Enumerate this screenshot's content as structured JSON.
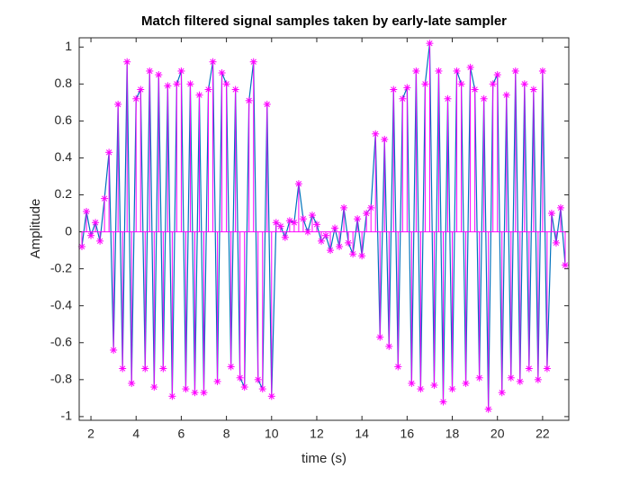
{
  "chart_data": {
    "type": "line",
    "title": "Match filtered signal samples taken by early-late sampler",
    "xlabel": "time (s)",
    "ylabel": "Amplitude",
    "xlim": [
      1.48,
      23.16
    ],
    "ylim": [
      -1.02,
      1.05
    ],
    "xticks": [
      2,
      4,
      6,
      8,
      10,
      12,
      14,
      16,
      18,
      20,
      22
    ],
    "yticks": [
      -1,
      -0.8,
      -0.6,
      -0.4,
      -0.2,
      0,
      0.2,
      0.4,
      0.6,
      0.8,
      1
    ],
    "grid": false,
    "x": [
      1.6,
      1.8,
      2.0,
      2.2,
      2.4,
      2.6,
      2.8,
      3.0,
      3.2,
      3.4,
      3.6,
      3.8,
      4.0,
      4.2,
      4.4,
      4.6,
      4.8,
      5.0,
      5.2,
      5.4,
      5.6,
      5.8,
      6.0,
      6.2,
      6.4,
      6.6,
      6.8,
      7.0,
      7.2,
      7.4,
      7.6,
      7.8,
      8.0,
      8.2,
      8.4,
      8.6,
      8.8,
      9.0,
      9.2,
      9.4,
      9.6,
      9.8,
      10.0,
      10.2,
      10.4,
      10.6,
      10.8,
      11.0,
      11.2,
      11.4,
      11.6,
      11.8,
      12.0,
      12.2,
      12.4,
      12.6,
      12.8,
      13.0,
      13.2,
      13.4,
      13.6,
      13.8,
      14.0,
      14.2,
      14.4,
      14.6,
      14.8,
      15.0,
      15.2,
      15.4,
      15.6,
      15.8,
      16.0,
      16.2,
      16.4,
      16.6,
      16.8,
      17.0,
      17.2,
      17.4,
      17.6,
      17.8,
      18.0,
      18.2,
      18.4,
      18.6,
      18.8,
      19.0,
      19.2,
      19.4,
      19.6,
      19.8,
      20.0,
      20.2,
      20.4,
      20.6,
      20.8,
      21.0,
      21.2,
      21.4,
      21.6,
      21.8,
      22.0,
      22.2,
      22.4,
      22.6,
      22.8,
      23.0
    ],
    "series": [
      {
        "type": "line",
        "color": "#0072bd",
        "values": [
          -0.08,
          0.11,
          -0.02,
          0.05,
          -0.05,
          0.18,
          0.43,
          -0.64,
          0.69,
          -0.74,
          0.92,
          -0.82,
          0.72,
          0.77,
          -0.74,
          0.87,
          -0.84,
          0.85,
          -0.74,
          0.79,
          -0.89,
          0.8,
          0.87,
          -0.85,
          0.8,
          -0.87,
          0.74,
          -0.87,
          0.77,
          0.92,
          -0.81,
          0.86,
          0.8,
          -0.73,
          0.77,
          -0.79,
          -0.84,
          0.71,
          0.92,
          -0.8,
          -0.85,
          0.69,
          -0.89,
          0.05,
          0.03,
          -0.03,
          0.06,
          0.05,
          0.26,
          0.07,
          0.0,
          0.09,
          0.04,
          -0.05,
          -0.02,
          -0.1,
          0.02,
          -0.08,
          0.13,
          -0.06,
          -0.12,
          0.07,
          -0.13,
          0.1,
          0.13,
          0.53,
          -0.57,
          0.5,
          -0.62,
          0.77,
          -0.73,
          0.72,
          0.78,
          -0.82,
          0.87,
          -0.85,
          0.8,
          1.02,
          -0.83,
          0.87,
          -0.92,
          0.72,
          -0.85,
          0.87,
          0.8,
          -0.82,
          0.89,
          0.77,
          -0.79,
          0.72,
          -0.96,
          0.8,
          0.85,
          -0.87,
          0.74,
          -0.79,
          0.87,
          -0.81,
          0.8,
          -0.74,
          0.77,
          -0.8,
          0.87,
          -0.74,
          0.1,
          -0.06,
          0.13,
          -0.18
        ]
      },
      {
        "type": "stem",
        "color": "#ff00ff",
        "values": [
          -0.08,
          0.11,
          -0.02,
          0.05,
          -0.05,
          0.18,
          0.43,
          -0.64,
          0.69,
          -0.74,
          0.92,
          -0.82,
          0.72,
          0.77,
          -0.74,
          0.87,
          -0.84,
          0.85,
          -0.74,
          0.79,
          -0.89,
          0.8,
          0.87,
          -0.85,
          0.8,
          -0.87,
          0.74,
          -0.87,
          0.77,
          0.92,
          -0.81,
          0.86,
          0.8,
          -0.73,
          0.77,
          -0.79,
          -0.84,
          0.71,
          0.92,
          -0.8,
          -0.85,
          0.69,
          -0.89,
          0.05,
          0.03,
          -0.03,
          0.06,
          0.05,
          0.26,
          0.07,
          0.0,
          0.09,
          0.04,
          -0.05,
          -0.02,
          -0.1,
          0.02,
          -0.08,
          0.13,
          -0.06,
          -0.12,
          0.07,
          -0.13,
          0.1,
          0.13,
          0.53,
          -0.57,
          0.5,
          -0.62,
          0.77,
          -0.73,
          0.72,
          0.78,
          -0.82,
          0.87,
          -0.85,
          0.8,
          1.02,
          -0.83,
          0.87,
          -0.92,
          0.72,
          -0.85,
          0.87,
          0.8,
          -0.82,
          0.89,
          0.77,
          -0.79,
          0.72,
          -0.96,
          0.8,
          0.85,
          -0.87,
          0.74,
          -0.79,
          0.87,
          -0.81,
          0.8,
          -0.74,
          0.77,
          -0.8,
          0.87,
          -0.74,
          0.1,
          -0.06,
          0.13,
          -0.18
        ]
      }
    ]
  }
}
